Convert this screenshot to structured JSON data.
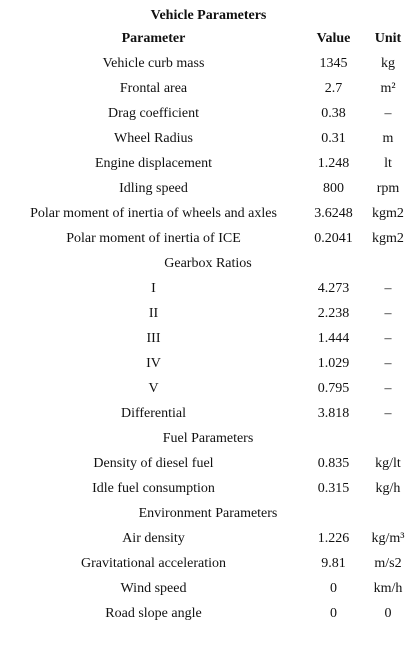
{
  "title": "Vehicle Parameters",
  "table": {
    "header": [
      "Parameter",
      "Value",
      "Unit"
    ],
    "rows": [
      [
        "Vehicle curb mass",
        1345,
        "kg"
      ],
      [
        "Frontal area",
        2.7,
        "m²"
      ],
      [
        "Drag coefficient",
        0.38,
        "–"
      ],
      [
        "Wheel Radius",
        0.31,
        "m"
      ],
      [
        "Engine displacement",
        1.248,
        "lt"
      ],
      [
        "Idling speed",
        800,
        "rpm"
      ],
      [
        "Polar moment of inertia of wheels and axles",
        3.6248,
        "kgm2"
      ],
      [
        "Polar moment of inertia of ICE",
        0.2041,
        "kgm2"
      ],
      [
        "Gearbox Ratios"
      ],
      [
        "I",
        4.273,
        "–"
      ],
      [
        "II",
        2.238,
        "–"
      ],
      [
        "III",
        1.444,
        "–"
      ],
      [
        "IV",
        1.029,
        "–"
      ],
      [
        "V",
        0.795,
        "–"
      ],
      [
        "Differential",
        3.818,
        "–"
      ],
      [
        "Fuel Parameters"
      ],
      [
        "Density of diesel fuel",
        0.835,
        "kg/lt"
      ],
      [
        "Idle fuel consumption",
        0.315,
        "kg/h"
      ],
      [
        "Environment Parameters"
      ],
      [
        "Air density",
        1.226,
        "kg/m³"
      ],
      [
        "Gravitational acceleration",
        9.81,
        "m/s2"
      ],
      [
        "Wind speed",
        0,
        "km/h"
      ],
      [
        "Road slope angle",
        0,
        0
      ]
    ]
  }
}
